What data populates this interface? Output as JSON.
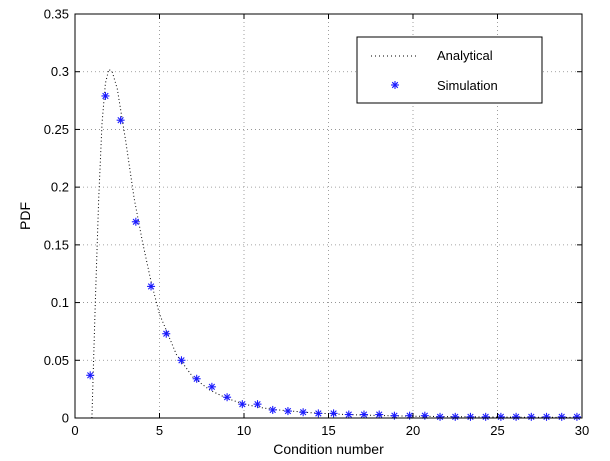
{
  "chart_data": {
    "type": "line",
    "title": "",
    "xlabel": "Condition number",
    "ylabel": "PDF",
    "xlim": [
      0,
      30
    ],
    "ylim": [
      0,
      0.35
    ],
    "xticks": [
      0,
      5,
      10,
      15,
      20,
      25,
      30
    ],
    "yticks": [
      0,
      0.05,
      0.1,
      0.15,
      0.2,
      0.25,
      0.3,
      0.35
    ],
    "xtick_labels": [
      "0",
      "5",
      "10",
      "15",
      "20",
      "25",
      "30"
    ],
    "ytick_labels": [
      "0",
      "0.05",
      "0.1",
      "0.15",
      "0.2",
      "0.25",
      "0.3",
      "0.35"
    ],
    "grid": true,
    "legend_position": "top-right",
    "series": [
      {
        "name": "Analytical",
        "style": "dotted-line",
        "color": "#000000",
        "x": [
          1,
          1.2,
          1.4,
          1.6,
          1.8,
          2.0,
          2.2,
          2.5,
          3.0,
          3.5,
          4.0,
          4.5,
          5.0,
          6.0,
          7.0,
          8.0,
          9.0,
          10.0,
          11.0,
          12.0,
          14.0,
          16.0,
          18.0,
          20.0,
          22.0,
          25.0,
          28.0,
          30.0
        ],
        "y": [
          0.0,
          0.1,
          0.19,
          0.255,
          0.29,
          0.302,
          0.3,
          0.285,
          0.24,
          0.19,
          0.152,
          0.118,
          0.09,
          0.055,
          0.035,
          0.024,
          0.017,
          0.012,
          0.009,
          0.007,
          0.0045,
          0.003,
          0.0022,
          0.0016,
          0.0012,
          0.0008,
          0.0006,
          0.0005
        ]
      },
      {
        "name": "Simulation",
        "style": "asterisk-markers",
        "color": "#1a1aff",
        "x": [
          0.9,
          1.8,
          2.7,
          3.6,
          4.5,
          5.4,
          6.3,
          7.2,
          8.1,
          9.0,
          9.9,
          10.8,
          11.7,
          12.6,
          13.5,
          14.4,
          15.3,
          16.2,
          17.1,
          18.0,
          18.9,
          19.8,
          20.7,
          21.6,
          22.5,
          23.4,
          24.3,
          25.2,
          26.1,
          27.0,
          27.9,
          28.8,
          29.7
        ],
        "y": [
          0.037,
          0.279,
          0.258,
          0.17,
          0.114,
          0.073,
          0.05,
          0.034,
          0.027,
          0.018,
          0.012,
          0.012,
          0.007,
          0.006,
          0.005,
          0.004,
          0.004,
          0.003,
          0.003,
          0.003,
          0.002,
          0.002,
          0.002,
          0.001,
          0.001,
          0.001,
          0.001,
          0.001,
          0.001,
          0.001,
          0.001,
          0.001,
          0.001
        ]
      }
    ]
  },
  "colors": {
    "grid": "#888888",
    "axis": "#000000",
    "analytical": "#000000",
    "simulation": "#1a1aff"
  }
}
